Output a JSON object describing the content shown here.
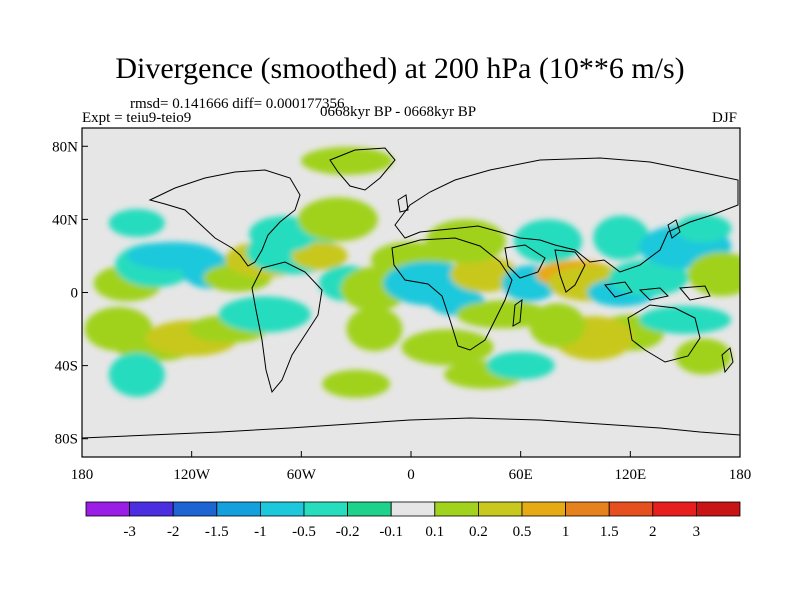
{
  "title": "Divergence (smoothed) at 200 hPa (10**6 m/s)",
  "stats": "rmsd= 0.141666 diff= 0.000177356",
  "experiment": "Expt = teiu9-teio9",
  "period": "0668kyr BP - 0668kyr BP",
  "season": "DJF",
  "axes": {
    "lat_ticks": [
      "80N",
      "40N",
      "0",
      "40S",
      "80S"
    ],
    "lon_ticks": [
      "180",
      "120W",
      "60W",
      "0",
      "60E",
      "120E",
      "180"
    ]
  },
  "colorbar": {
    "labels": [
      "-3",
      "-2",
      "-1.5",
      "-1",
      "-0.5",
      "-0.2",
      "-0.1",
      "0.1",
      "0.2",
      "0.5",
      "1",
      "1.5",
      "2",
      "3"
    ],
    "colors": [
      "#9a1ee6",
      "#4a2ee0",
      "#1e64d2",
      "#14a0dc",
      "#1ec8dc",
      "#28dcbe",
      "#1ed28c",
      "#e6e6e6",
      "#a0d21e",
      "#c8c81e",
      "#e6aa14",
      "#e6821e",
      "#e6501e",
      "#e61e1e",
      "#c81414"
    ]
  },
  "fields": [
    {
      "lon": -150,
      "lat": 38,
      "value": -0.2
    },
    {
      "lon": -155,
      "lat": 5,
      "value": 0.2
    },
    {
      "lon": -140,
      "lat": 15,
      "value": -0.2
    },
    {
      "lon": -130,
      "lat": 20,
      "value": -0.5
    },
    {
      "lon": -110,
      "lat": 12,
      "value": -0.5
    },
    {
      "lon": -160,
      "lat": -20,
      "value": 0.2
    },
    {
      "lon": -140,
      "lat": -30,
      "value": 0.2
    },
    {
      "lon": -120,
      "lat": -25,
      "value": 0.5
    },
    {
      "lon": -150,
      "lat": -45,
      "value": -0.2
    },
    {
      "lon": -95,
      "lat": 8,
      "value": 0.2
    },
    {
      "lon": -80,
      "lat": 18,
      "value": 0.5
    },
    {
      "lon": -65,
      "lat": 22,
      "value": -0.2
    },
    {
      "lon": -50,
      "lat": 20,
      "value": 0.5
    },
    {
      "lon": -70,
      "lat": 32,
      "value": -0.2
    },
    {
      "lon": -40,
      "lat": 40,
      "value": 0.2
    },
    {
      "lon": -35,
      "lat": 72,
      "value": 0.2
    },
    {
      "lon": -35,
      "lat": 5,
      "value": -0.2
    },
    {
      "lon": -20,
      "lat": 2,
      "value": 0.2
    },
    {
      "lon": -100,
      "lat": -20,
      "value": 0.2
    },
    {
      "lon": -80,
      "lat": -12,
      "value": -0.2
    },
    {
      "lon": -20,
      "lat": -20,
      "value": 0.2
    },
    {
      "lon": -30,
      "lat": -50,
      "value": 0.2
    },
    {
      "lon": 0,
      "lat": 18,
      "value": 0.2
    },
    {
      "lon": 10,
      "lat": 5,
      "value": -0.5
    },
    {
      "lon": 25,
      "lat": -5,
      "value": -0.5
    },
    {
      "lon": 40,
      "lat": 10,
      "value": 0.5
    },
    {
      "lon": 30,
      "lat": 28,
      "value": 0.2
    },
    {
      "lon": 50,
      "lat": -12,
      "value": 0.2
    },
    {
      "lon": 65,
      "lat": 5,
      "value": -0.5
    },
    {
      "lon": 75,
      "lat": 28,
      "value": -0.2
    },
    {
      "lon": 90,
      "lat": 10,
      "value": 1
    },
    {
      "lon": 100,
      "lat": 5,
      "value": 0.5
    },
    {
      "lon": 115,
      "lat": 30,
      "value": -0.2
    },
    {
      "lon": 115,
      "lat": 0,
      "value": -0.5
    },
    {
      "lon": 130,
      "lat": 8,
      "value": -0.2
    },
    {
      "lon": 150,
      "lat": 25,
      "value": -0.5
    },
    {
      "lon": 160,
      "lat": 35,
      "value": -0.2
    },
    {
      "lon": 120,
      "lat": -22,
      "value": 0.2
    },
    {
      "lon": 100,
      "lat": -25,
      "value": 0.5
    },
    {
      "lon": 150,
      "lat": -15,
      "value": -0.2
    },
    {
      "lon": 160,
      "lat": -35,
      "value": 0.2
    },
    {
      "lon": 170,
      "lat": 10,
      "value": 0.2
    },
    {
      "lon": 40,
      "lat": -45,
      "value": 0.2
    },
    {
      "lon": 20,
      "lat": -30,
      "value": 0.2
    },
    {
      "lon": 80,
      "lat": -18,
      "value": 0.2
    },
    {
      "lon": 60,
      "lat": -40,
      "value": -0.2
    }
  ]
}
